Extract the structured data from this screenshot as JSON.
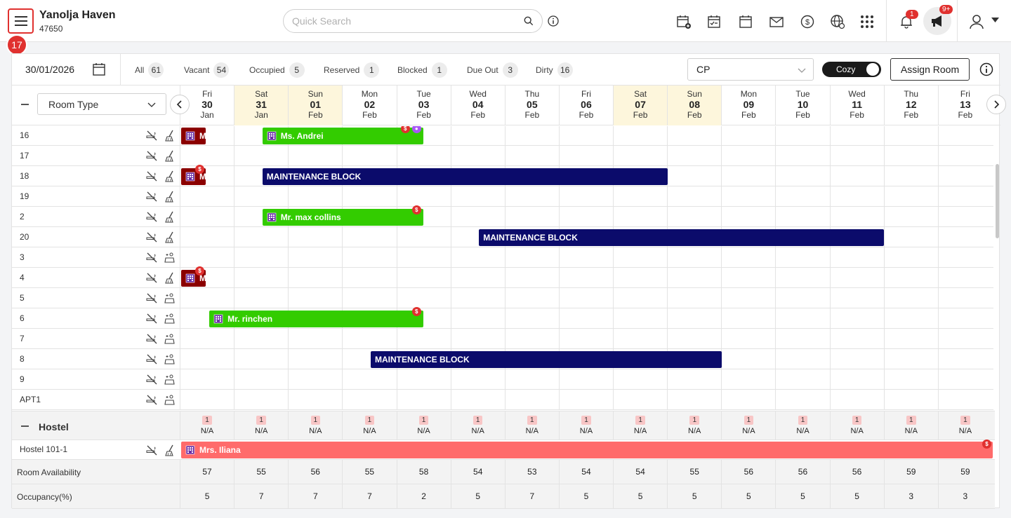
{
  "header": {
    "hotel_name": "Yanolja Haven",
    "hotel_id": "47650",
    "menu_badge": "17",
    "search_placeholder": "Quick Search",
    "notif_count": "1",
    "promo_count": "9+"
  },
  "filters": {
    "date": "30/01/2026",
    "chips": [
      {
        "label": "All",
        "count": "61"
      },
      {
        "label": "Vacant",
        "count": "54"
      },
      {
        "label": "Occupied",
        "count": "5"
      },
      {
        "label": "Reserved",
        "count": "1"
      },
      {
        "label": "Blocked",
        "count": "1"
      },
      {
        "label": "Due Out",
        "count": "3"
      },
      {
        "label": "Dirty",
        "count": "16"
      }
    ],
    "rate_plan": "CP",
    "view_toggle": "Cozy",
    "assign_label": "Assign Room"
  },
  "grid": {
    "room_type_label": "Room Type",
    "dates": [
      {
        "dow": "Fri",
        "day": "30",
        "mon": "Jan",
        "weekend": false
      },
      {
        "dow": "Sat",
        "day": "31",
        "mon": "Jan",
        "weekend": true
      },
      {
        "dow": "Sun",
        "day": "01",
        "mon": "Feb",
        "weekend": true
      },
      {
        "dow": "Mon",
        "day": "02",
        "mon": "Feb",
        "weekend": false
      },
      {
        "dow": "Tue",
        "day": "03",
        "mon": "Feb",
        "weekend": false
      },
      {
        "dow": "Wed",
        "day": "04",
        "mon": "Feb",
        "weekend": false
      },
      {
        "dow": "Thu",
        "day": "05",
        "mon": "Feb",
        "weekend": false
      },
      {
        "dow": "Fri",
        "day": "06",
        "mon": "Feb",
        "weekend": false
      },
      {
        "dow": "Sat",
        "day": "07",
        "mon": "Feb",
        "weekend": true
      },
      {
        "dow": "Sun",
        "day": "08",
        "mon": "Feb",
        "weekend": true
      },
      {
        "dow": "Mon",
        "day": "09",
        "mon": "Feb",
        "weekend": false
      },
      {
        "dow": "Tue",
        "day": "10",
        "mon": "Feb",
        "weekend": false
      },
      {
        "dow": "Wed",
        "day": "11",
        "mon": "Feb",
        "weekend": false
      },
      {
        "dow": "Thu",
        "day": "12",
        "mon": "Feb",
        "weekend": false
      },
      {
        "dow": "Fri",
        "day": "13",
        "mon": "Feb",
        "weekend": false
      }
    ],
    "rooms": [
      "16",
      "17",
      "18",
      "19",
      "2",
      "20",
      "3",
      "4",
      "5",
      "6",
      "7",
      "8",
      "9",
      "APT1"
    ],
    "bookings": [
      {
        "room": 0,
        "start": 0,
        "len": 0.45,
        "label": "M",
        "style": "b-red",
        "icon": true,
        "dots": []
      },
      {
        "room": 0,
        "start": 1.5,
        "len": 2.97,
        "label": "Ms. Andrei",
        "style": "b-green",
        "icon": true,
        "dots": [
          "s",
          "p"
        ]
      },
      {
        "room": 2,
        "start": 0,
        "len": 0.45,
        "label": "M",
        "style": "b-red",
        "icon": true,
        "dots": [
          "s"
        ]
      },
      {
        "room": 2,
        "start": 1.5,
        "len": 7.48,
        "label": "MAINTENANCE BLOCK",
        "style": "b-navy",
        "icon": false,
        "dots": []
      },
      {
        "room": 4,
        "start": 1.5,
        "len": 2.97,
        "label": "Mr. max collins",
        "style": "b-green",
        "icon": true,
        "dots": [
          "s"
        ]
      },
      {
        "room": 5,
        "start": 5.5,
        "len": 7.48,
        "label": "MAINTENANCE BLOCK",
        "style": "b-navy",
        "icon": false,
        "dots": []
      },
      {
        "room": 7,
        "start": 0,
        "len": 0.45,
        "label": "M",
        "style": "b-red",
        "icon": true,
        "dots": [
          "s"
        ]
      },
      {
        "room": 9,
        "start": 0.52,
        "len": 3.95,
        "label": "Mr. rinchen",
        "style": "b-green",
        "icon": true,
        "dots": [
          "s"
        ]
      },
      {
        "room": 11,
        "start": 3.5,
        "len": 6.48,
        "label": "MAINTENANCE BLOCK",
        "style": "b-navy",
        "icon": false,
        "dots": []
      }
    ],
    "hostel": {
      "label": "Hostel",
      "badge": "1",
      "na": "N/A",
      "room": "Hostel 101-1",
      "booking": "Mrs. Iliana"
    },
    "availability_label": "Room Availability",
    "availability": [
      "57",
      "55",
      "56",
      "55",
      "58",
      "54",
      "53",
      "54",
      "54",
      "55",
      "56",
      "56",
      "56",
      "59",
      "59"
    ],
    "occupancy_label": "Occupancy(%)",
    "occupancy": [
      "5",
      "7",
      "7",
      "7",
      "2",
      "5",
      "7",
      "5",
      "5",
      "5",
      "5",
      "5",
      "5",
      "3",
      "3"
    ]
  }
}
